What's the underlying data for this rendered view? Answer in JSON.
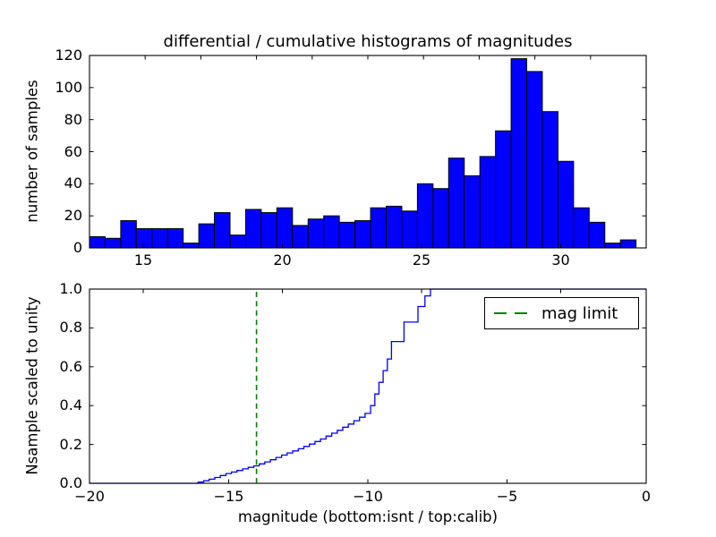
{
  "figure": {
    "title": "differential / cumulative histograms of magnitudes",
    "background_color": "#ffffff",
    "accent_blue": "#0000ff",
    "accent_green": "#008000"
  },
  "chart_data": [
    {
      "type": "bar",
      "title": "differential / cumulative histograms of magnitudes",
      "ylabel": "number of samples",
      "xlabel": "",
      "xlim": [
        13.07,
        33.07
      ],
      "ylim": [
        0,
        120
      ],
      "xtick_values": [
        15,
        20,
        25,
        30
      ],
      "xtick_labels": [
        "15",
        "20",
        "25",
        "30"
      ],
      "ytick_values": [
        0,
        20,
        40,
        60,
        80,
        100,
        120
      ],
      "ytick_labels": [
        "0",
        "20",
        "40",
        "60",
        "80",
        "100",
        "120"
      ],
      "top_spine_tick_values_instrumental": [
        -18,
        -16,
        -14,
        -12,
        -10,
        -8,
        -6,
        -4,
        -2
      ],
      "calib_minus_instrumental_offset": 33.07,
      "bin_start": 13.07,
      "bin_width": 0.561,
      "values": [
        7,
        6,
        17,
        12,
        12,
        12,
        3,
        15,
        22,
        8,
        24,
        22,
        25,
        14,
        18,
        20,
        16,
        17,
        25,
        26,
        23,
        40,
        37,
        56,
        45,
        57,
        73,
        118,
        110,
        85,
        54,
        25,
        16,
        3,
        5
      ],
      "bar_color": "#0000ff",
      "bar_edge_color": "#000000",
      "grid": false
    },
    {
      "type": "line",
      "style": "cumulative-step",
      "ylabel": "Nsample scaled to unity",
      "xlabel": "magnitude (bottom:isnt / top:calib)",
      "xlim": [
        -20,
        0
      ],
      "ylim": [
        0.0,
        1.0
      ],
      "xtick_values": [
        -20,
        -15,
        -10,
        -5,
        0
      ],
      "xtick_labels": [
        "−20",
        "−15",
        "−10",
        "−5",
        "0"
      ],
      "ytick_values": [
        0,
        0.2,
        0.4,
        0.6,
        0.8,
        1.0
      ],
      "ytick_labels": [
        "0.0",
        "0.2",
        "0.4",
        "0.6",
        "0.8",
        "1.0"
      ],
      "top_spine_tick_values_calib": [
        15,
        20,
        25,
        30
      ],
      "line_color": "#0000ff",
      "cumulative_steps": [
        [
          -20,
          0
        ],
        [
          -16.1,
          0.006
        ],
        [
          -15.9,
          0.013
        ],
        [
          -15.7,
          0.021
        ],
        [
          -15.5,
          0.03
        ],
        [
          -15.3,
          0.04
        ],
        [
          -15.1,
          0.05
        ],
        [
          -14.9,
          0.058
        ],
        [
          -14.7,
          0.066
        ],
        [
          -14.5,
          0.074
        ],
        [
          -14.3,
          0.082
        ],
        [
          -14.1,
          0.09
        ],
        [
          -13.9,
          0.1
        ],
        [
          -13.7,
          0.11
        ],
        [
          -13.5,
          0.121
        ],
        [
          -13.3,
          0.133
        ],
        [
          -13.1,
          0.145
        ],
        [
          -12.9,
          0.156
        ],
        [
          -12.7,
          0.167
        ],
        [
          -12.5,
          0.178
        ],
        [
          -12.3,
          0.19
        ],
        [
          -12.1,
          0.202
        ],
        [
          -11.9,
          0.215
        ],
        [
          -11.7,
          0.228
        ],
        [
          -11.5,
          0.243
        ],
        [
          -11.3,
          0.258
        ],
        [
          -11.1,
          0.273
        ],
        [
          -10.9,
          0.289
        ],
        [
          -10.7,
          0.305
        ],
        [
          -10.5,
          0.322
        ],
        [
          -10.3,
          0.34
        ],
        [
          -10.1,
          0.36
        ],
        [
          -9.9,
          0.4
        ],
        [
          -9.75,
          0.46
        ],
        [
          -9.6,
          0.52
        ],
        [
          -9.45,
          0.58
        ],
        [
          -9.3,
          0.64
        ],
        [
          -9.15,
          0.73
        ],
        [
          -8.7,
          0.83
        ],
        [
          -8.2,
          0.91
        ],
        [
          -7.95,
          0.965
        ],
        [
          -7.75,
          1.0
        ],
        [
          0,
          1.0
        ]
      ],
      "mag_limit_line": {
        "x": -14,
        "color": "#008000",
        "style": "dashed"
      },
      "legend": {
        "label": "mag limit",
        "position": "upper right",
        "line_color": "#008000"
      },
      "grid": false
    }
  ]
}
